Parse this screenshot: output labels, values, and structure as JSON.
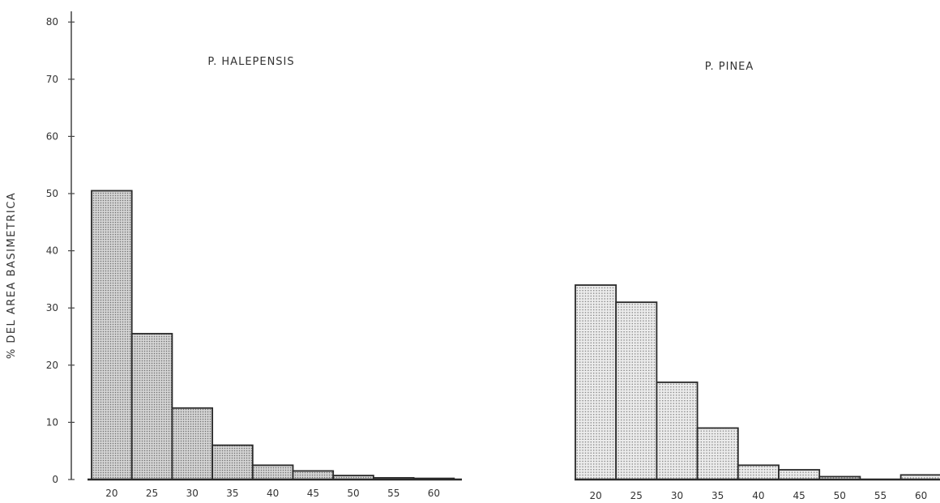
{
  "chart_data": [
    {
      "type": "bar",
      "title": "P. HALEPENSIS",
      "ylabel": "% DEL AREA BASIMETRICA",
      "xlabel": "",
      "categories": [
        "20",
        "25",
        "30",
        "35",
        "40",
        "45",
        "50",
        "55",
        "60"
      ],
      "values": [
        50.5,
        25.5,
        12.5,
        6,
        2.5,
        1.5,
        0.7,
        0.3,
        0.2
      ],
      "ylim": [
        0,
        80
      ],
      "yticks": [
        0,
        10,
        20,
        30,
        40,
        50,
        60,
        70,
        80
      ],
      "grid": false,
      "colors": {
        "bar_fill": "#d4d4d4",
        "bar_dots": "#6e6e6e",
        "bar_stroke": "#2a2a2a"
      }
    },
    {
      "type": "bar",
      "title": "P. PINEA",
      "xlabel": "",
      "ylabel": "",
      "categories": [
        "20",
        "25",
        "30",
        "35",
        "40",
        "45",
        "50",
        "55",
        "60"
      ],
      "values": [
        34,
        31,
        17,
        9,
        2.5,
        1.7,
        0.5,
        0,
        0.8
      ],
      "ylim": [
        0,
        80
      ],
      "grid": false,
      "colors": {
        "bar_fill": "#ececec",
        "bar_dots": "#7a7a7a",
        "bar_stroke": "#2a2a2a"
      }
    }
  ]
}
